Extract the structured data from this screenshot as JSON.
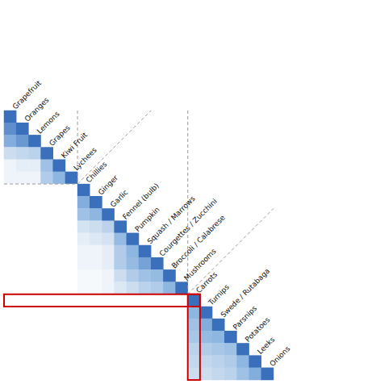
{
  "chart_data": {
    "type": "heatmap",
    "categories": [
      "Grapefruit",
      "Oranges",
      "Lemons",
      "Grapes",
      "Kiwi Fruit",
      "Lychees",
      "Chillies",
      "Ginger",
      "Garlic",
      "Fennel (bulb)",
      "Pumpkin",
      "Squash / Marrows",
      "Courgettes / Zucchini",
      "Broccoli / Calabrese",
      "Mushrooms",
      "Carrots",
      "Turnips",
      "Swede / Rutabaga",
      "Parsnips",
      "Potatoes",
      "Leeks",
      "Onions"
    ],
    "cells": [
      [
        1.0
      ],
      [
        0.85,
        1.0
      ],
      [
        0.7,
        0.8,
        1.0
      ],
      [
        0.3,
        0.35,
        0.4,
        1.0
      ],
      [
        0.1,
        0.15,
        0.15,
        0.55,
        1.0
      ],
      [
        0.1,
        0.1,
        0.1,
        0.45,
        0.65,
        1.0
      ],
      [
        0,
        0,
        0,
        0,
        0,
        0,
        1.0
      ],
      [
        0,
        0,
        0,
        0,
        0,
        0,
        0.7,
        1.0
      ],
      [
        0,
        0,
        0,
        0,
        0,
        0,
        0.55,
        0.65,
        1.0
      ],
      [
        0,
        0,
        0,
        0,
        0,
        0,
        0.25,
        0.3,
        0.4,
        1.0
      ],
      [
        0,
        0,
        0,
        0,
        0,
        0,
        0.15,
        0.2,
        0.25,
        0.6,
        1.0
      ],
      [
        0,
        0,
        0,
        0,
        0,
        0,
        0.1,
        0.1,
        0.15,
        0.45,
        0.65,
        1.0
      ],
      [
        0,
        0,
        0,
        0,
        0,
        0,
        0.1,
        0.1,
        0.15,
        0.45,
        0.6,
        0.75,
        1.0
      ],
      [
        0,
        0,
        0,
        0,
        0,
        0,
        0.05,
        0.05,
        0.1,
        0.3,
        0.45,
        0.55,
        0.6,
        1.0
      ],
      [
        0,
        0,
        0,
        0,
        0,
        0,
        0.05,
        0.05,
        0.1,
        0.2,
        0.3,
        0.4,
        0.45,
        0.65,
        1.0
      ],
      [
        0,
        0,
        0,
        0,
        0,
        0,
        0,
        0,
        0,
        0,
        0,
        0,
        0,
        0,
        0,
        1.0
      ],
      [
        0,
        0,
        0,
        0,
        0,
        0,
        0,
        0,
        0,
        0,
        0,
        0,
        0,
        0,
        0,
        0.65,
        1.0
      ],
      [
        0,
        0,
        0,
        0,
        0,
        0,
        0,
        0,
        0,
        0,
        0,
        0,
        0,
        0,
        0,
        0.55,
        0.7,
        1.0
      ],
      [
        0,
        0,
        0,
        0,
        0,
        0,
        0,
        0,
        0,
        0,
        0,
        0,
        0,
        0,
        0,
        0.5,
        0.6,
        0.65,
        1.0
      ],
      [
        0,
        0,
        0,
        0,
        0,
        0,
        0,
        0,
        0,
        0,
        0,
        0,
        0,
        0,
        0,
        0.4,
        0.45,
        0.5,
        0.55,
        1.0
      ],
      [
        0,
        0,
        0,
        0,
        0,
        0,
        0,
        0,
        0,
        0,
        0,
        0,
        0,
        0,
        0,
        0.35,
        0.35,
        0.4,
        0.45,
        0.65,
        1.0
      ],
      [
        0,
        0,
        0,
        0,
        0,
        0,
        0,
        0,
        0,
        0,
        0,
        0,
        0,
        0,
        0,
        0.3,
        0.3,
        0.35,
        0.4,
        0.55,
        0.7,
        1.0
      ]
    ],
    "zlim": [
      0,
      1
    ],
    "colormap": [
      "#ffffff",
      "#c6d9ee",
      "#8ab4e0",
      "#3a6fbb"
    ],
    "group_starts": [
      "Chillies",
      "Carrots"
    ],
    "highlight": "Carrots",
    "line_color": "#999999",
    "highlight_color": "#cc0000",
    "label_color": "#111111"
  }
}
